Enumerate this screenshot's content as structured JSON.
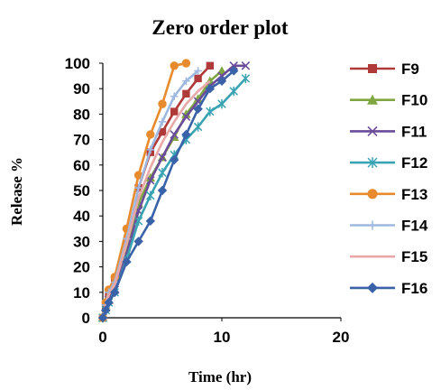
{
  "chart_data": {
    "type": "line",
    "title": "Zero order plot",
    "xlabel": "Time (hr)",
    "ylabel": "Release %",
    "xlim": [
      0,
      20
    ],
    "ylim": [
      0,
      100
    ],
    "xticks": [
      0,
      10,
      20
    ],
    "yticks": [
      0,
      10,
      20,
      30,
      40,
      50,
      60,
      70,
      80,
      90,
      100
    ],
    "grid": false,
    "legend_position": "right",
    "series": [
      {
        "name": "F9",
        "color": "#b03a3a",
        "marker": "square",
        "x": [
          0,
          0.25,
          0.5,
          1,
          2,
          3,
          4,
          5,
          6,
          7,
          8,
          9
        ],
        "y": [
          0,
          5,
          9,
          14,
          29,
          51,
          65,
          73,
          81,
          88,
          94,
          99
        ]
      },
      {
        "name": "F10",
        "color": "#7fa640",
        "marker": "triangle",
        "x": [
          0,
          0.25,
          0.5,
          1,
          2,
          3,
          4,
          5,
          6,
          7,
          8,
          9,
          10
        ],
        "y": [
          0,
          4,
          7,
          11,
          26,
          45,
          55,
          63,
          71,
          80,
          86,
          93,
          97
        ]
      },
      {
        "name": "F11",
        "color": "#6b4c9a",
        "marker": "x",
        "x": [
          0,
          0.25,
          0.5,
          1,
          2,
          3,
          4,
          5,
          6,
          7,
          8,
          9,
          10,
          11,
          12
        ],
        "y": [
          0,
          4,
          7,
          11,
          25,
          42,
          54,
          63,
          72,
          79,
          85,
          91,
          95,
          99,
          99
        ]
      },
      {
        "name": "F12",
        "color": "#3aa3b3",
        "marker": "asterisk",
        "x": [
          0,
          0.25,
          0.5,
          1,
          2,
          3,
          4,
          5,
          6,
          7,
          8,
          9,
          10,
          11,
          12
        ],
        "y": [
          0,
          3,
          6,
          10,
          23,
          38,
          48,
          57,
          64,
          70,
          75,
          81,
          84,
          89,
          94
        ]
      },
      {
        "name": "F13",
        "color": "#e88a2e",
        "marker": "circle",
        "x": [
          0,
          0.25,
          0.5,
          1,
          2,
          3,
          4,
          5,
          6,
          7
        ],
        "y": [
          0,
          6,
          11,
          16,
          35,
          56,
          72,
          84,
          99,
          100
        ]
      },
      {
        "name": "F14",
        "color": "#9fb8e0",
        "marker": "plus",
        "x": [
          0,
          0.25,
          0.5,
          1,
          2,
          3,
          4,
          5,
          6,
          7,
          8
        ],
        "y": [
          0,
          5,
          10,
          14,
          31,
          51,
          66,
          77,
          87,
          93,
          97
        ]
      },
      {
        "name": "F15",
        "color": "#e8a8a8",
        "marker": "none",
        "x": [
          0,
          0.25,
          0.5,
          1,
          2,
          3,
          4,
          5,
          6,
          7,
          8,
          9
        ],
        "y": [
          0,
          5,
          9,
          13,
          29,
          47,
          59,
          69,
          77,
          84,
          89,
          93
        ]
      },
      {
        "name": "F16",
        "color": "#3a62a8",
        "marker": "diamond",
        "x": [
          0,
          0.25,
          0.5,
          1,
          2,
          3,
          4,
          5,
          6,
          7,
          8,
          9,
          10,
          11
        ],
        "y": [
          0,
          3,
          6,
          10,
          22,
          30,
          38,
          50,
          62,
          72,
          82,
          90,
          93,
          97
        ]
      }
    ]
  }
}
